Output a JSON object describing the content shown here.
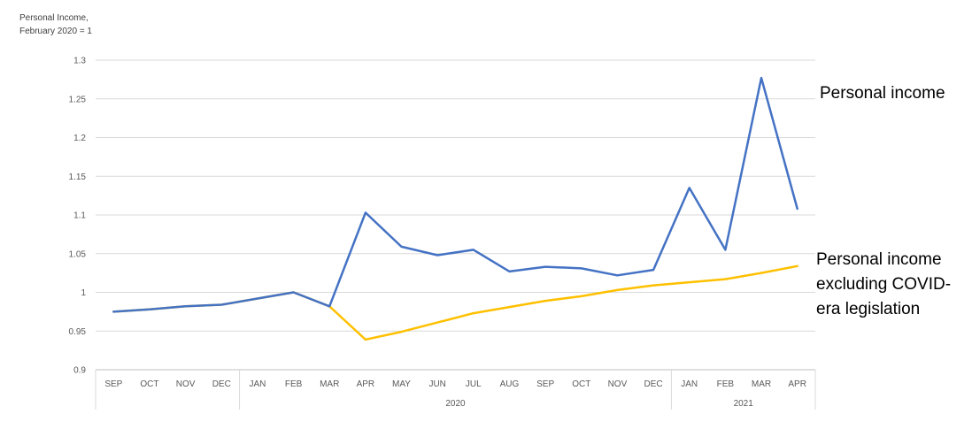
{
  "chart_data": {
    "type": "line",
    "ylabel_lines": [
      "Personal Income,",
      "February 2020 = 1"
    ],
    "ylim": [
      0.9,
      1.3
    ],
    "yticks": [
      "0.9",
      "0.95",
      "1",
      "1.05",
      "1.1",
      "1.15",
      "1.2",
      "1.25",
      "1.3"
    ],
    "categories": [
      "SEP",
      "OCT",
      "NOV",
      "DEC",
      "JAN",
      "FEB",
      "MAR",
      "APR",
      "MAY",
      "JUN",
      "JUL",
      "AUG",
      "SEP",
      "OCT",
      "NOV",
      "DEC",
      "JAN",
      "FEB",
      "MAR",
      "APR"
    ],
    "year_groups": [
      {
        "label": "",
        "start": 0,
        "end": 3
      },
      {
        "label": "2020",
        "start": 4,
        "end": 15
      },
      {
        "label": "2021",
        "start": 16,
        "end": 19
      }
    ],
    "grid": true,
    "series": [
      {
        "name": "Personal income",
        "color": "#4472C4",
        "label_lines": [
          "Personal income"
        ],
        "values": [
          0.975,
          0.978,
          0.982,
          0.984,
          0.992,
          1.0,
          0.982,
          1.103,
          1.059,
          1.048,
          1.055,
          1.027,
          1.033,
          1.031,
          1.022,
          1.029,
          1.135,
          1.055,
          1.277,
          1.108
        ]
      },
      {
        "name": "Personal income excluding COVID-era legislation",
        "color": "#FFC000",
        "label_lines": [
          "Personal income",
          "excluding COVID-",
          "era legislation"
        ],
        "values": [
          0.975,
          0.978,
          0.982,
          0.984,
          0.992,
          1.0,
          0.982,
          0.939,
          0.949,
          0.961,
          0.973,
          0.981,
          0.989,
          0.995,
          1.003,
          1.009,
          1.013,
          1.017,
          1.025,
          1.034
        ]
      }
    ]
  }
}
